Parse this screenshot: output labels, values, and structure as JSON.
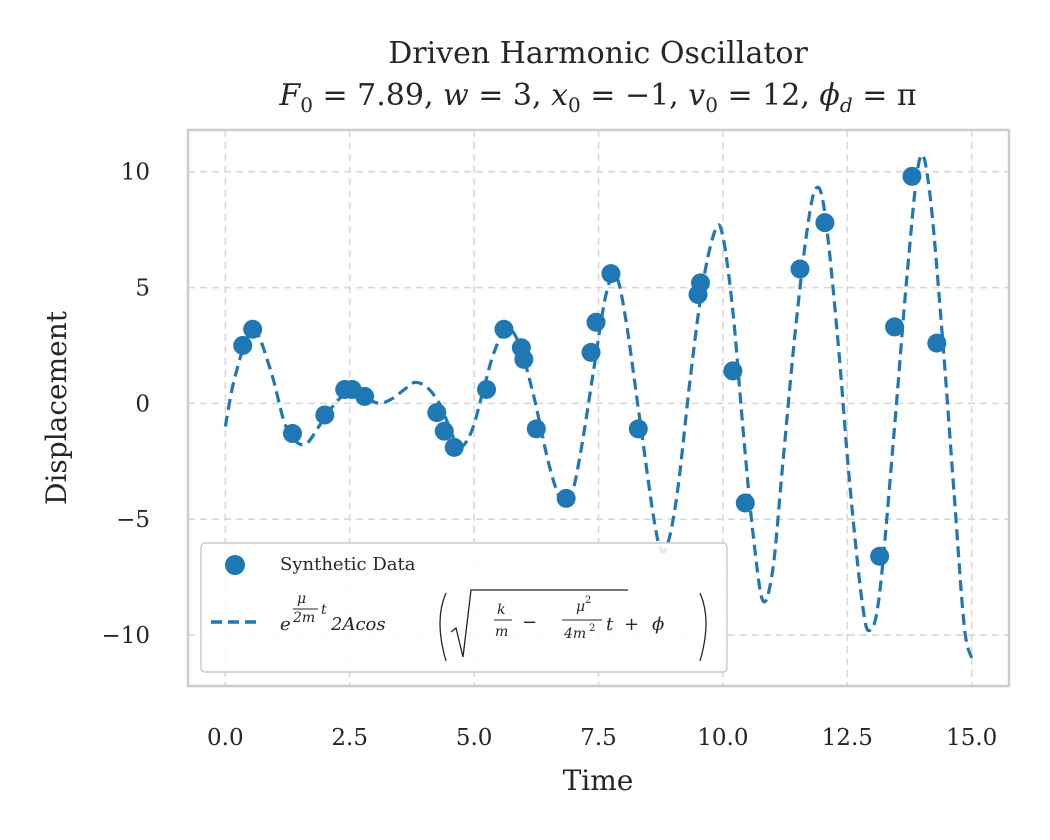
{
  "chart_data": {
    "type": "scatter",
    "title": "Driven Harmonic Oscillator",
    "subtitle": "F₀ = 7.89, w = 3, x₀ = −1, v₀ = 12, ϕ_d = π",
    "xlabel": "Time",
    "ylabel": "Displacement",
    "xlim": [
      -0.75,
      15.75
    ],
    "ylim": [
      -12.2,
      11.8
    ],
    "xticks": [
      0.0,
      2.5,
      5.0,
      7.5,
      10.0,
      12.5,
      15.0
    ],
    "xtick_labels": [
      "0.0",
      "2.5",
      "5.0",
      "7.5",
      "10.0",
      "12.5",
      "15.0"
    ],
    "yticks": [
      10,
      5,
      0,
      -5,
      -10
    ],
    "ytick_labels": [
      "10",
      "5",
      "0",
      "−5",
      "−10"
    ],
    "grid": true,
    "legend_position": "lower-left",
    "colors": {
      "series": "#1f77b4",
      "grid": "#d9d9d9",
      "frame": "#cccccc"
    },
    "series": [
      {
        "name": "Synthetic Data",
        "kind": "scatter",
        "x": [
          0.35,
          0.55,
          1.35,
          2.0,
          2.4,
          2.55,
          2.8,
          4.25,
          4.4,
          4.6,
          5.25,
          5.6,
          5.95,
          6.0,
          6.25,
          6.85,
          7.35,
          7.45,
          7.75,
          8.3,
          9.5,
          9.55,
          10.2,
          10.45,
          11.55,
          12.05,
          13.15,
          13.45,
          13.8,
          14.3
        ],
        "y": [
          2.5,
          3.2,
          -1.3,
          -0.5,
          0.6,
          0.6,
          0.3,
          -0.4,
          -1.2,
          -1.9,
          0.6,
          3.2,
          2.4,
          1.9,
          -1.1,
          -4.1,
          2.2,
          3.5,
          5.6,
          -1.1,
          4.7,
          5.2,
          1.4,
          -4.3,
          5.8,
          7.8,
          -6.6,
          3.3,
          9.8,
          2.6
        ]
      },
      {
        "name": "e^(μ/2m t) 2Acos(√(k/m − μ²/4m²) t + ϕ)",
        "kind": "line-dashed",
        "x": [
          0.0,
          0.2,
          0.55,
          0.9,
          1.2,
          1.45,
          1.65,
          1.85,
          2.1,
          2.35,
          2.6,
          2.85,
          3.1,
          3.35,
          3.6,
          3.8,
          4.05,
          4.3,
          4.5,
          4.7,
          4.95,
          5.2,
          5.4,
          5.65,
          5.9,
          6.2,
          6.5,
          6.75,
          6.95,
          7.15,
          7.4,
          7.65,
          7.85,
          8.05,
          8.35,
          8.6,
          8.75,
          8.9,
          9.1,
          9.35,
          9.6,
          9.85,
          10.0,
          10.2,
          10.4,
          10.6,
          10.8,
          11.0,
          11.2,
          11.45,
          11.7,
          11.88,
          12.05,
          12.3,
          12.55,
          12.8,
          12.95,
          13.15,
          13.45,
          13.7,
          13.95,
          14.15,
          14.4,
          14.65,
          14.85,
          15.0
        ],
        "y": [
          -1.0,
          1.2,
          3.2,
          1.5,
          -0.9,
          -1.7,
          -1.7,
          -1.1,
          -0.3,
          0.3,
          0.4,
          0.2,
          0.0,
          0.2,
          0.6,
          0.9,
          0.7,
          0.0,
          -1.0,
          -1.9,
          -1.2,
          0.7,
          2.2,
          3.2,
          2.6,
          0.3,
          -2.6,
          -4.2,
          -4.0,
          -2.0,
          1.4,
          4.7,
          5.5,
          3.6,
          -1.0,
          -4.8,
          -6.3,
          -6.0,
          -3.6,
          1.2,
          5.2,
          7.5,
          7.2,
          4.0,
          -1.0,
          -5.5,
          -8.5,
          -7.2,
          -2.7,
          3.0,
          7.6,
          9.3,
          8.2,
          3.0,
          -3.5,
          -8.6,
          -9.8,
          -8.2,
          -1.0,
          5.5,
          10.5,
          9.2,
          3.2,
          -4.0,
          -9.6,
          -11.0
        ]
      }
    ]
  }
}
